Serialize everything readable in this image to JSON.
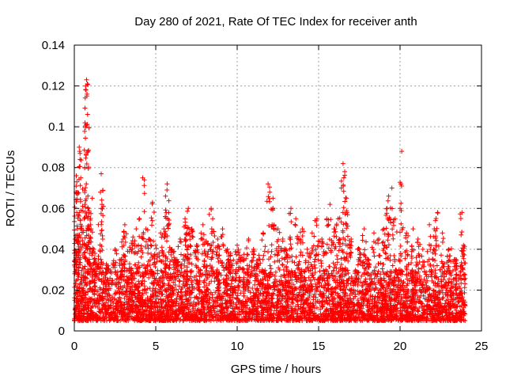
{
  "chart_data": {
    "type": "scatter",
    "title": "Day 280 of 2021, Rate Of TEC Index for receiver anth",
    "xlabel": "GPS time / hours",
    "ylabel": "ROTI / TECUs",
    "xlim": [
      0,
      25
    ],
    "ylim": [
      0,
      0.14
    ],
    "xticks": [
      "0",
      "5",
      "10",
      "15",
      "20",
      "25"
    ],
    "xtick_values": [
      0,
      5,
      10,
      15,
      20,
      25
    ],
    "yticks": [
      "0",
      "0.02",
      "0.04",
      "0.06",
      "0.08",
      "0.1",
      "0.12",
      "0.14"
    ],
    "ytick_values": [
      0,
      0.02,
      0.04,
      0.06,
      0.08,
      0.1,
      0.12,
      0.14
    ],
    "grid": true,
    "marker": "+",
    "marker_color": "#ff0000",
    "series": [
      {
        "name": "ROTI",
        "base_range": [
          0.005,
          0.03
        ],
        "points": [
          [
            0.05,
            0.045
          ],
          [
            0.1,
            0.068
          ],
          [
            0.12,
            0.076
          ],
          [
            0.15,
            0.058
          ],
          [
            0.2,
            0.05
          ],
          [
            0.25,
            0.047
          ],
          [
            0.3,
            0.09
          ],
          [
            0.33,
            0.088
          ],
          [
            0.35,
            0.084
          ],
          [
            0.4,
            0.075
          ],
          [
            0.6,
            0.055
          ],
          [
            0.65,
            0.062
          ],
          [
            0.7,
            0.12
          ],
          [
            0.72,
            0.118
          ],
          [
            0.75,
            0.123
          ],
          [
            0.78,
            0.116
          ],
          [
            0.8,
            0.121
          ],
          [
            0.85,
            0.06
          ],
          [
            0.9,
            0.058
          ],
          [
            1.0,
            0.052
          ],
          [
            1.1,
            0.065
          ],
          [
            1.2,
            0.04
          ],
          [
            1.5,
            0.033
          ],
          [
            1.6,
            0.068
          ],
          [
            1.65,
            0.077
          ],
          [
            1.7,
            0.062
          ],
          [
            2.0,
            0.032
          ],
          [
            2.5,
            0.04
          ],
          [
            2.9,
            0.035
          ],
          [
            3.0,
            0.045
          ],
          [
            3.1,
            0.052
          ],
          [
            3.4,
            0.041
          ],
          [
            3.6,
            0.046
          ],
          [
            3.8,
            0.05
          ],
          [
            4.0,
            0.055
          ],
          [
            4.2,
            0.075
          ],
          [
            4.4,
            0.05
          ],
          [
            4.6,
            0.045
          ],
          [
            4.8,
            0.063
          ],
          [
            5.0,
            0.042
          ],
          [
            5.3,
            0.048
          ],
          [
            5.5,
            0.05
          ],
          [
            5.6,
            0.066
          ],
          [
            5.7,
            0.072
          ],
          [
            5.8,
            0.058
          ],
          [
            6.0,
            0.04
          ],
          [
            6.3,
            0.035
          ],
          [
            6.5,
            0.045
          ],
          [
            6.8,
            0.055
          ],
          [
            6.9,
            0.048
          ],
          [
            7.0,
            0.06
          ],
          [
            7.2,
            0.05
          ],
          [
            7.5,
            0.042
          ],
          [
            7.9,
            0.052
          ],
          [
            8.1,
            0.044
          ],
          [
            8.4,
            0.06
          ],
          [
            8.5,
            0.055
          ],
          [
            8.8,
            0.045
          ],
          [
            9.1,
            0.05
          ],
          [
            9.4,
            0.04
          ],
          [
            9.6,
            0.038
          ],
          [
            10.0,
            0.042
          ],
          [
            10.3,
            0.036
          ],
          [
            10.7,
            0.045
          ],
          [
            11.0,
            0.04
          ],
          [
            11.3,
            0.035
          ],
          [
            11.6,
            0.048
          ],
          [
            11.9,
            0.072
          ],
          [
            12.0,
            0.068
          ],
          [
            12.2,
            0.065
          ],
          [
            12.5,
            0.05
          ],
          [
            12.8,
            0.045
          ],
          [
            13.0,
            0.04
          ],
          [
            13.3,
            0.06
          ],
          [
            13.6,
            0.055
          ],
          [
            13.8,
            0.045
          ],
          [
            14.0,
            0.05
          ],
          [
            14.3,
            0.04
          ],
          [
            14.6,
            0.048
          ],
          [
            14.9,
            0.055
          ],
          [
            15.2,
            0.045
          ],
          [
            15.5,
            0.055
          ],
          [
            15.7,
            0.062
          ],
          [
            16.0,
            0.05
          ],
          [
            16.2,
            0.055
          ],
          [
            16.4,
            0.07
          ],
          [
            16.5,
            0.082
          ],
          [
            16.55,
            0.075
          ],
          [
            16.6,
            0.078
          ],
          [
            16.7,
            0.065
          ],
          [
            17.0,
            0.045
          ],
          [
            17.5,
            0.04
          ],
          [
            17.8,
            0.05
          ],
          [
            18.0,
            0.035
          ],
          [
            18.4,
            0.048
          ],
          [
            18.7,
            0.045
          ],
          [
            19.0,
            0.05
          ],
          [
            19.2,
            0.06
          ],
          [
            19.3,
            0.066
          ],
          [
            19.5,
            0.07
          ],
          [
            19.7,
            0.055
          ],
          [
            20.0,
            0.06
          ],
          [
            20.1,
            0.088
          ],
          [
            20.4,
            0.048
          ],
          [
            20.8,
            0.05
          ],
          [
            21.1,
            0.045
          ],
          [
            21.4,
            0.04
          ],
          [
            21.8,
            0.052
          ],
          [
            22.1,
            0.05
          ],
          [
            22.3,
            0.058
          ],
          [
            22.6,
            0.048
          ],
          [
            23.0,
            0.04
          ],
          [
            23.4,
            0.035
          ],
          [
            23.8,
            0.058
          ],
          [
            23.9,
            0.042
          ]
        ]
      }
    ]
  }
}
